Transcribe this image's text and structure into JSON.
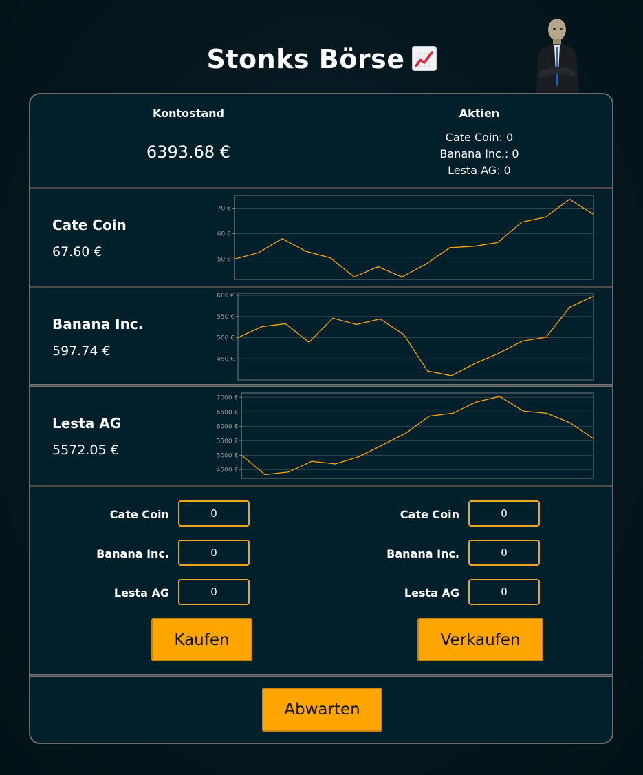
{
  "header": {
    "title": "Stonks Börse",
    "emoji_icon": "chart-increasing-emoji"
  },
  "account": {
    "balance_label": "Kontostand",
    "balance_value": "6393.68 €",
    "shares_label": "Aktien",
    "holdings": [
      "Cate Coin: 0",
      "Banana Inc.: 0",
      "Lesta AG: 0"
    ]
  },
  "stocks": [
    {
      "name": "Cate Coin",
      "price": "67.60 €",
      "chart_data": {
        "type": "line",
        "values": [
          50,
          52.5,
          58,
          53,
          50.5,
          43,
          47,
          43,
          48,
          54.5,
          55,
          56.5,
          64.5,
          66.5,
          73.5,
          67.6
        ],
        "ylim": [
          42,
          75
        ],
        "ticks": [
          50,
          60,
          70
        ],
        "tick_labels": [
          "50 €",
          "60 €",
          "70 €"
        ]
      }
    },
    {
      "name": "Banana Inc.",
      "price": "597.74 €",
      "chart_data": {
        "type": "line",
        "values": [
          500,
          526,
          533,
          489,
          546,
          531,
          544,
          507,
          421,
          410,
          439,
          463,
          492,
          501,
          572,
          597.74
        ],
        "ylim": [
          400,
          605
        ],
        "ticks": [
          450,
          500,
          550,
          600
        ],
        "tick_labels": [
          "450 €",
          "500 €",
          "550 €",
          "600 €"
        ]
      }
    },
    {
      "name": "Lesta AG",
      "price": "5572.05 €",
      "chart_data": {
        "type": "line",
        "values": [
          5000,
          4330,
          4420,
          4790,
          4700,
          4950,
          5350,
          5760,
          6350,
          6450,
          6840,
          7030,
          6530,
          6450,
          6120,
          5572.05
        ],
        "ylim": [
          4200,
          7150
        ],
        "ticks": [
          4500,
          5000,
          5500,
          6000,
          6500,
          7000
        ],
        "tick_labels": [
          "4500 €",
          "5000 €",
          "5500 €",
          "6000 €",
          "6500 €",
          "7000 €"
        ]
      }
    }
  ],
  "colors": {
    "line": "#ffa500",
    "input_border": "#e9a426",
    "button": "#ffa500"
  },
  "trade": {
    "buy": {
      "fields": [
        {
          "label": "Cate Coin",
          "value": "0"
        },
        {
          "label": "Banana Inc.",
          "value": "0"
        },
        {
          "label": "Lesta AG",
          "value": "0"
        }
      ],
      "button": "Kaufen"
    },
    "sell": {
      "fields": [
        {
          "label": "Cate Coin",
          "value": "0"
        },
        {
          "label": "Banana Inc.",
          "value": "0"
        },
        {
          "label": "Lesta AG",
          "value": "0"
        }
      ],
      "button": "Verkaufen"
    }
  },
  "wait_button": "Abwarten"
}
